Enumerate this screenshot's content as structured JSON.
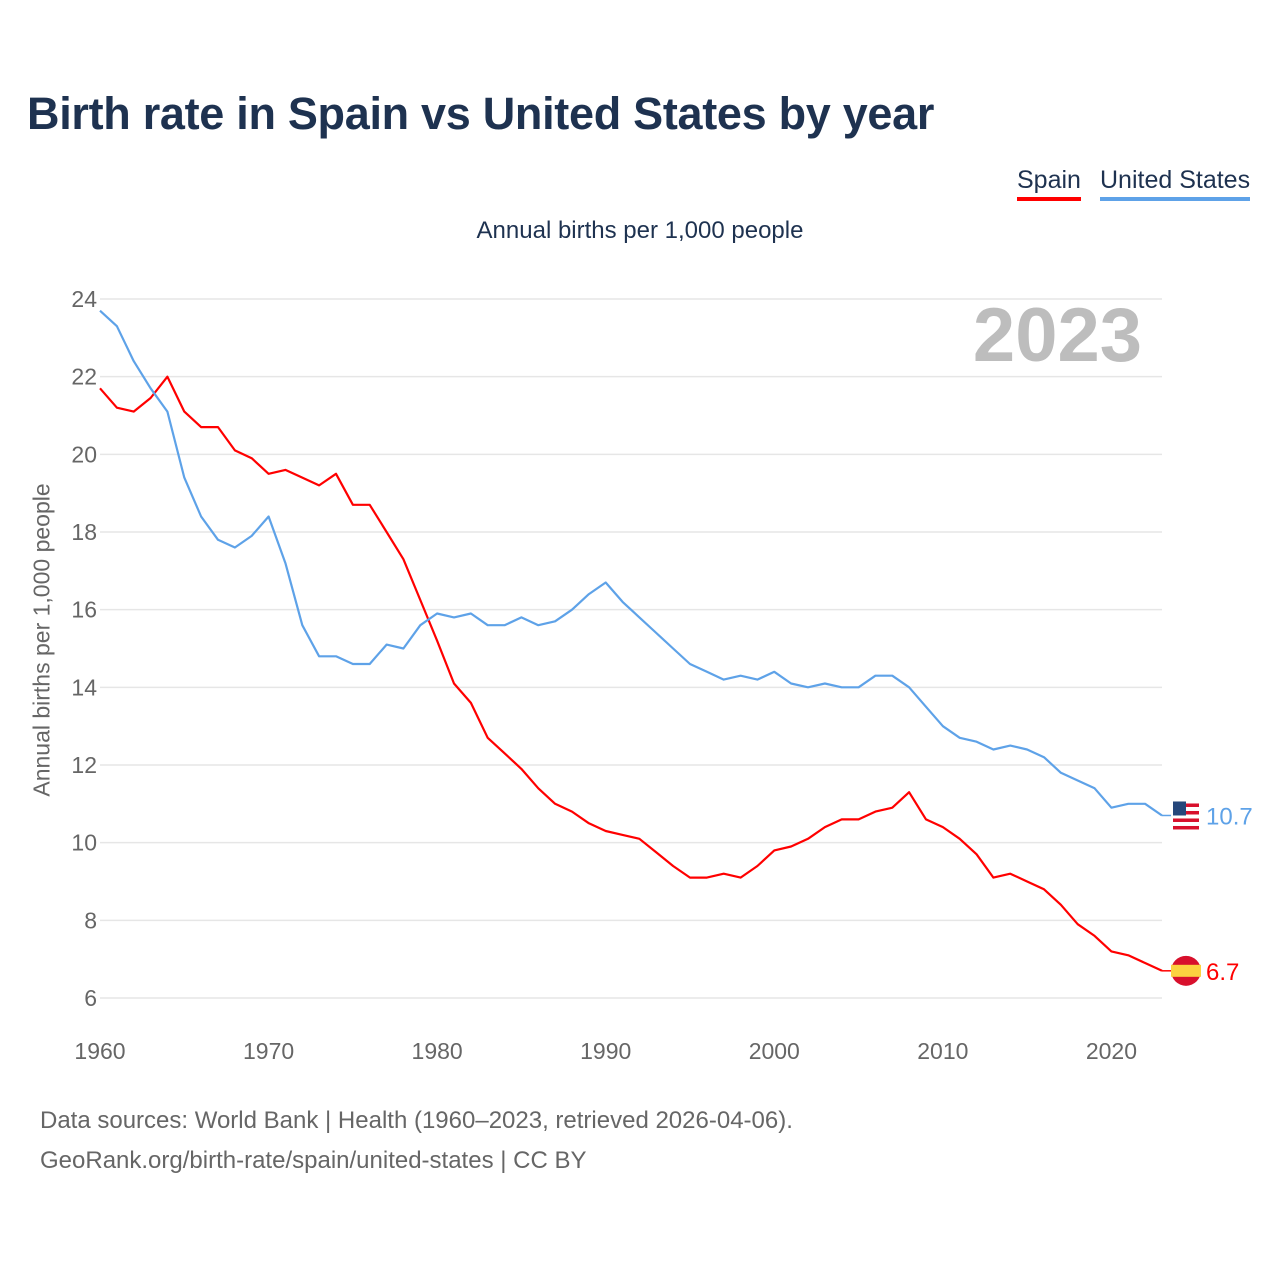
{
  "chart_data": {
    "type": "line",
    "title": "Birth rate in Spain vs United States by year",
    "subtitle": "Annual births per 1,000 people",
    "ylabel": "Annual births per 1,000 people",
    "xlabel": "",
    "year_badge": "2023",
    "xlim": [
      1960,
      2023
    ],
    "ylim": [
      6,
      24
    ],
    "xticks": [
      1960,
      1970,
      1980,
      1990,
      2000,
      2010,
      2020
    ],
    "yticks": [
      6,
      8,
      10,
      12,
      14,
      16,
      18,
      20,
      22,
      24
    ],
    "grid": true,
    "legend_placement": "top-right",
    "x": [
      1960,
      1961,
      1962,
      1963,
      1964,
      1965,
      1966,
      1967,
      1968,
      1969,
      1970,
      1971,
      1972,
      1973,
      1974,
      1975,
      1976,
      1977,
      1978,
      1979,
      1980,
      1981,
      1982,
      1983,
      1984,
      1985,
      1986,
      1987,
      1988,
      1989,
      1990,
      1991,
      1992,
      1993,
      1994,
      1995,
      1996,
      1997,
      1998,
      1999,
      2000,
      2001,
      2002,
      2003,
      2004,
      2005,
      2006,
      2007,
      2008,
      2009,
      2010,
      2011,
      2012,
      2013,
      2014,
      2015,
      2016,
      2017,
      2018,
      2019,
      2020,
      2021,
      2022,
      2023
    ],
    "series": [
      {
        "name": "Spain",
        "color": "#ff0000",
        "end_label": "6.7",
        "values": [
          21.7,
          21.2,
          21.1,
          21.45,
          22.0,
          21.1,
          20.7,
          20.7,
          20.1,
          19.9,
          19.5,
          19.6,
          19.4,
          19.2,
          19.5,
          18.7,
          18.7,
          18.0,
          17.3,
          16.25,
          15.2,
          14.1,
          13.6,
          12.7,
          12.3,
          11.9,
          11.4,
          11.0,
          10.8,
          10.5,
          10.3,
          10.2,
          10.1,
          9.75,
          9.4,
          9.1,
          9.1,
          9.2,
          9.1,
          9.4,
          9.8,
          9.9,
          10.1,
          10.4,
          10.6,
          10.6,
          10.8,
          10.9,
          11.3,
          10.6,
          10.4,
          10.1,
          9.7,
          9.1,
          9.2,
          9.0,
          8.8,
          8.4,
          7.9,
          7.6,
          7.2,
          7.1,
          6.9,
          6.7
        ]
      },
      {
        "name": "United States",
        "color": "#5ea2e8",
        "end_label": "10.7",
        "values": [
          23.7,
          23.3,
          22.4,
          21.7,
          21.1,
          19.4,
          18.4,
          17.8,
          17.6,
          17.9,
          18.4,
          17.2,
          15.6,
          14.8,
          14.8,
          14.6,
          14.6,
          15.1,
          15.0,
          15.6,
          15.9,
          15.8,
          15.9,
          15.6,
          15.6,
          15.8,
          15.6,
          15.7,
          16.0,
          16.4,
          16.7,
          16.2,
          15.8,
          15.4,
          15.0,
          14.6,
          14.4,
          14.2,
          14.3,
          14.2,
          14.4,
          14.1,
          14.0,
          14.1,
          14.0,
          14.0,
          14.3,
          14.3,
          14.0,
          13.5,
          13.0,
          12.7,
          12.6,
          12.4,
          12.5,
          12.4,
          12.2,
          11.8,
          11.6,
          11.4,
          10.9,
          11.0,
          11.0,
          10.7
        ]
      }
    ],
    "source_line_1": "Data sources: World Bank | Health (1960–2023, retrieved 2026-04-06).",
    "source_line_2": "GeoRank.org/birth-rate/spain/united-states | CC BY"
  }
}
